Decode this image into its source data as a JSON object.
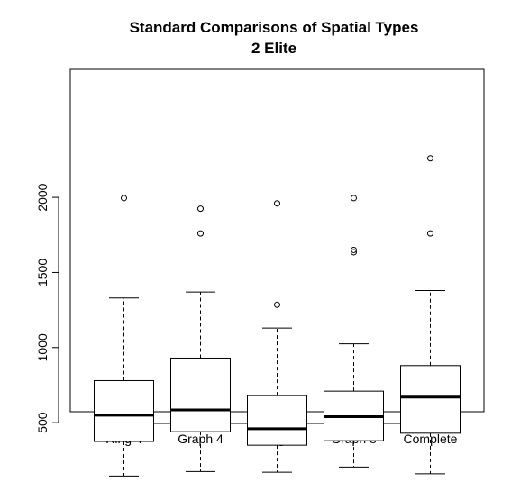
{
  "chart_data": {
    "type": "boxplot",
    "title": "Standard Comparisons of Spatial Types",
    "subtitle": "2 Elite",
    "xlabel": "",
    "ylabel": "",
    "categories": [
      "Ring 4",
      "Graph 4",
      "Ring 8",
      "Graph 8",
      "Complete"
    ],
    "y_ticks": [
      500,
      1000,
      1500,
      2000
    ],
    "ylim": [
      100,
      2340
    ],
    "grid": false,
    "boxes": [
      {
        "name": "Ring 4",
        "whisker_low": 145,
        "q1": 375,
        "median": 550,
        "q3": 780,
        "whisker_high": 1330,
        "outliers": [
          1995
        ]
      },
      {
        "name": "Graph 4",
        "whisker_low": 175,
        "q1": 440,
        "median": 585,
        "q3": 930,
        "whisker_high": 1370,
        "outliers": [
          1925,
          1760
        ]
      },
      {
        "name": "Ring 8",
        "whisker_low": 170,
        "q1": 350,
        "median": 460,
        "q3": 680,
        "whisker_high": 1130,
        "outliers": [
          1960,
          1285
        ]
      },
      {
        "name": "Graph 8",
        "whisker_low": 205,
        "q1": 380,
        "median": 540,
        "q3": 710,
        "whisker_high": 1025,
        "outliers": [
          1995,
          1650,
          1635
        ]
      },
      {
        "name": "Complete",
        "whisker_low": 160,
        "q1": 430,
        "median": 670,
        "q3": 880,
        "whisker_high": 1380,
        "outliers": [
          2260,
          1760
        ]
      }
    ]
  }
}
